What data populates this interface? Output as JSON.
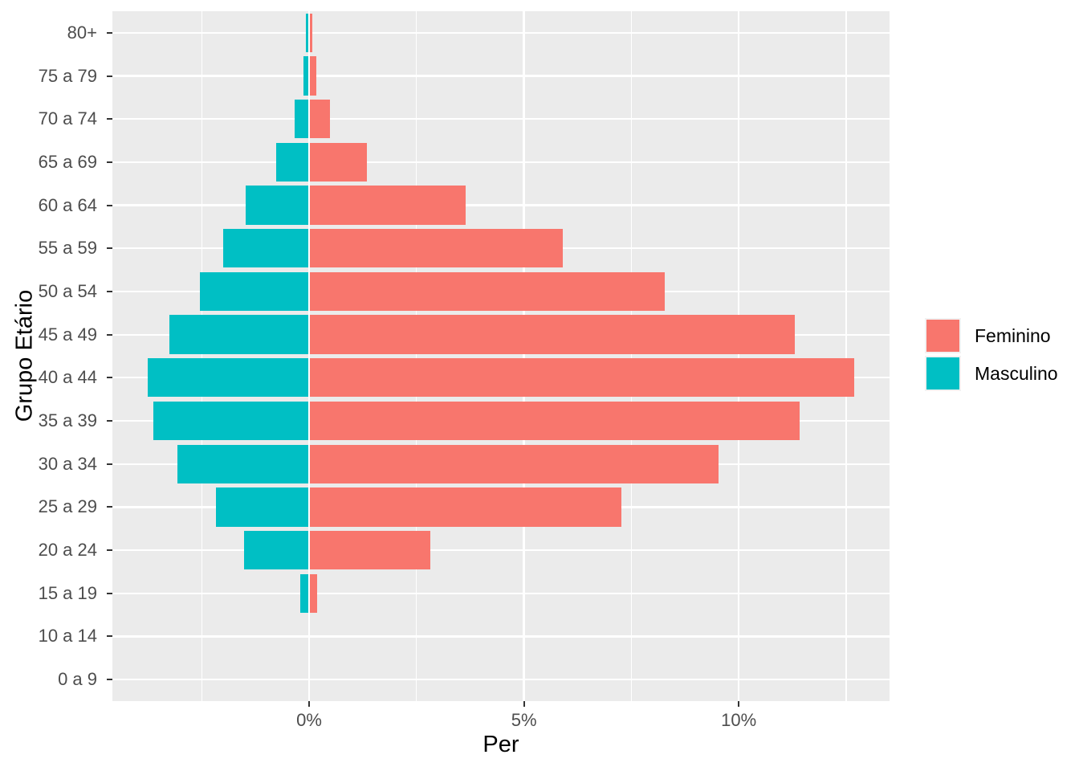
{
  "figure": {
    "background_color": "#FFFFFF",
    "panel_background_color": "#EBEBEB",
    "gridline_color": "#FFFFFF",
    "tick_mark_color": "#333333",
    "tick_label_color": "#4D4D4D",
    "axis_title_color": "#000000"
  },
  "legend": {
    "key_background_color": "#F2F2F2",
    "items": [
      {
        "label": "Feminino",
        "color": "#F8766D"
      },
      {
        "label": "Masculino",
        "color": "#00BFC4"
      }
    ]
  },
  "chart_data": {
    "type": "bar",
    "subtype": "population-pyramid",
    "orientation": "horizontal",
    "title": "",
    "xlabel": "Per",
    "ylabel": "Grupo Etário",
    "categories_top_to_bottom": [
      "80+",
      "75 a 79",
      "70 a 74",
      "65 a 69",
      "60 a 64",
      "55 a 59",
      "50 a 54",
      "45 a 49",
      "40 a 44",
      "35 a 39",
      "30 a 34",
      "25 a 29",
      "20 a 24",
      "15 a 19",
      "10 a 14",
      "0 a 9"
    ],
    "series": [
      {
        "name": "Feminino",
        "side": "right",
        "color": "#F8766D",
        "values_pct_top_to_bottom": [
          0.07,
          0.17,
          0.48,
          1.34,
          3.65,
          5.9,
          8.27,
          11.3,
          12.68,
          11.41,
          9.53,
          7.27,
          2.82,
          0.18,
          0,
          0
        ]
      },
      {
        "name": "Masculino",
        "side": "left",
        "color": "#00BFC4",
        "values_pct_top_to_bottom": [
          0.07,
          0.13,
          0.33,
          0.77,
          1.48,
          2.0,
          2.54,
          3.26,
          3.76,
          3.62,
          3.07,
          2.16,
          1.51,
          0.2,
          0,
          0
        ]
      }
    ],
    "x_ticks": [
      {
        "value": 0,
        "label": "0%"
      },
      {
        "value": 5,
        "label": "5%"
      },
      {
        "value": 10,
        "label": "10%"
      }
    ],
    "x_minor_ticks": [
      -2.5,
      2.5,
      7.5,
      12.5
    ],
    "xlim": [
      -4.58,
      13.51
    ],
    "bar_width_fraction": 0.9,
    "grid": "major-and-minor-x, major-y",
    "legend_position": "right"
  }
}
